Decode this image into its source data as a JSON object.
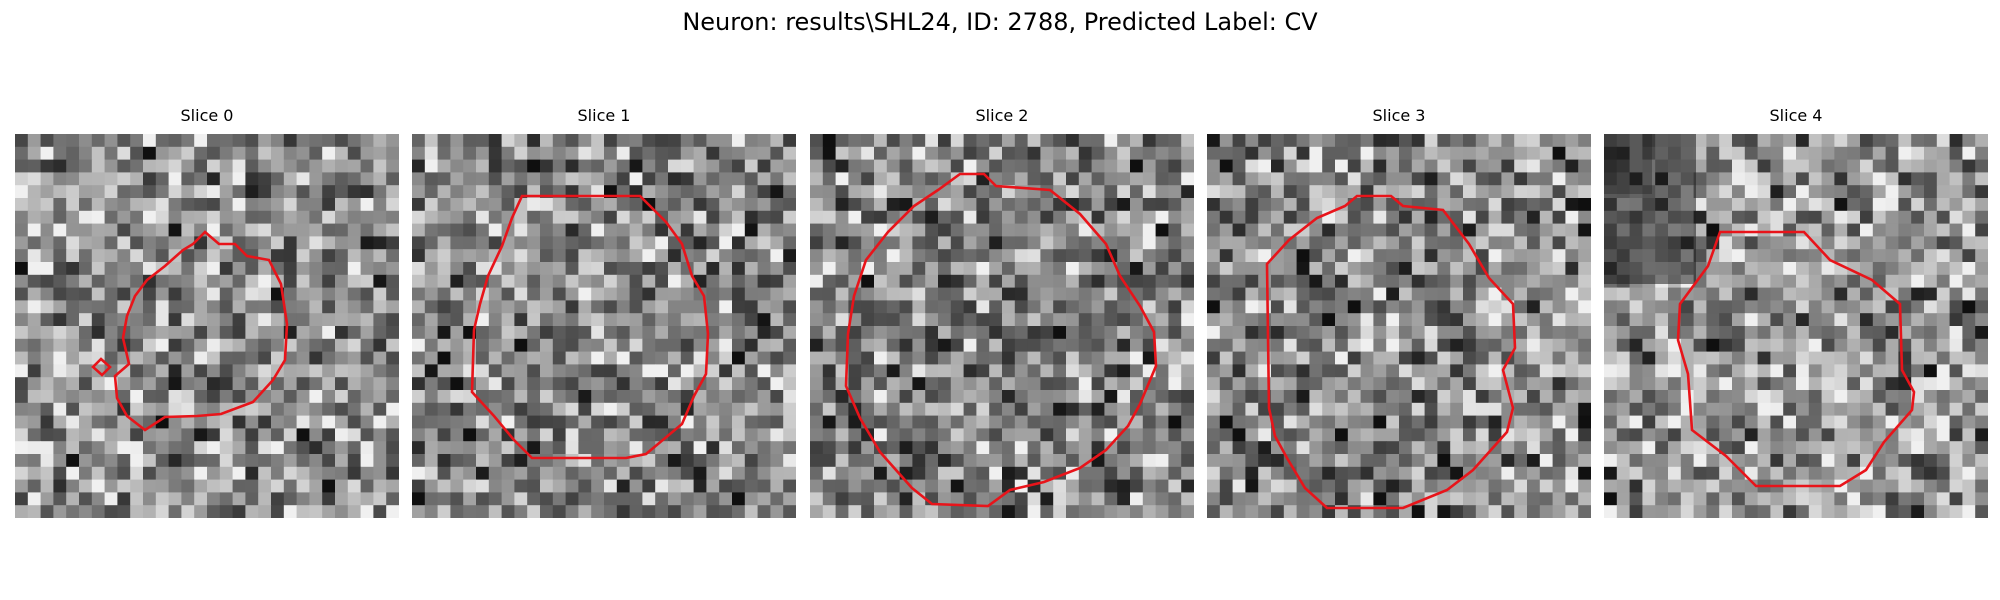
{
  "figure": {
    "title": "Neuron: results\\SHL24, ID: 2788, Predicted Label: CV"
  },
  "panels": [
    {
      "title": "Slice 0"
    },
    {
      "title": "Slice 1"
    },
    {
      "title": "Slice 2"
    },
    {
      "title": "Slice 3"
    },
    {
      "title": "Slice 4"
    }
  ],
  "colors": {
    "contour": "#e8141a",
    "background": "#ffffff"
  }
}
